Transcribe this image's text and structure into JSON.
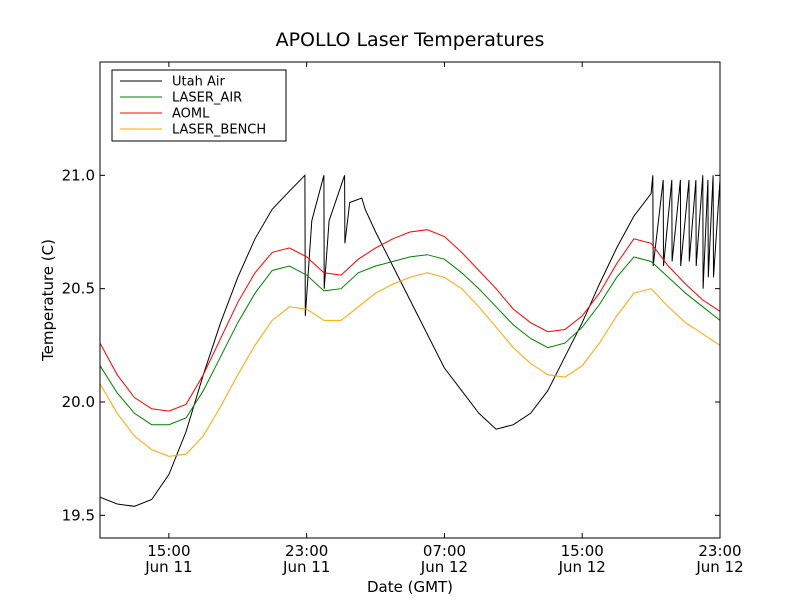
{
  "chart_data": {
    "type": "line",
    "title": "APOLLO Laser Temperatures",
    "xlabel": "Date (GMT)",
    "ylabel": "Temperature (C)",
    "xlim": [
      11,
      47
    ],
    "ylim": [
      19.4,
      21.5
    ],
    "grid": false,
    "legend_position": "top-left",
    "x_ticks": [
      {
        "x": 15,
        "time": "15:00",
        "date": "Jun 11"
      },
      {
        "x": 23,
        "time": "23:00",
        "date": "Jun 11"
      },
      {
        "x": 31,
        "time": "07:00",
        "date": "Jun 12"
      },
      {
        "x": 39,
        "time": "15:00",
        "date": "Jun 12"
      },
      {
        "x": 47,
        "time": "23:00",
        "date": "Jun 12"
      }
    ],
    "y_ticks": [
      {
        "y": 19.5,
        "label": "19.5"
      },
      {
        "y": 20.0,
        "label": "20.0"
      },
      {
        "y": 20.5,
        "label": "20.5"
      },
      {
        "y": 21.0,
        "label": "21.0"
      }
    ],
    "series": [
      {
        "name": "Utah Air",
        "color": "#000000",
        "x": [
          11,
          12,
          13,
          14,
          15,
          16,
          17,
          18,
          19,
          20,
          21,
          22,
          22.9,
          22.92,
          23.3,
          24.0,
          24.02,
          24.3,
          25.2,
          25.22,
          25.5,
          26.2,
          26.4,
          27,
          28,
          29,
          30,
          31,
          32,
          33,
          34,
          35,
          36,
          37,
          38,
          39,
          40,
          41,
          42,
          43,
          43.1,
          43.12,
          43.7,
          43.72,
          44.2,
          44.22,
          44.7,
          44.72,
          45.2,
          45.22,
          45.6,
          45.62,
          46.0,
          46.02,
          46.3,
          46.32,
          46.6,
          46.62,
          47
        ],
        "y": [
          19.58,
          19.55,
          19.54,
          19.57,
          19.68,
          19.87,
          20.12,
          20.35,
          20.55,
          20.72,
          20.85,
          20.93,
          21.0,
          20.38,
          20.8,
          21.0,
          20.5,
          20.8,
          21.0,
          20.7,
          20.88,
          20.9,
          20.85,
          20.75,
          20.6,
          20.45,
          20.3,
          20.15,
          20.05,
          19.95,
          19.88,
          19.9,
          19.95,
          20.05,
          20.2,
          20.35,
          20.52,
          20.68,
          20.82,
          20.92,
          21.0,
          20.6,
          20.98,
          20.6,
          20.98,
          20.62,
          20.98,
          20.6,
          20.98,
          20.62,
          20.98,
          20.6,
          21.0,
          20.5,
          20.98,
          20.55,
          21.0,
          20.55,
          20.98
        ]
      },
      {
        "name": "LASER_AIR",
        "color": "#008000",
        "x": [
          11,
          12,
          13,
          14,
          15,
          16,
          17,
          18,
          19,
          20,
          21,
          22,
          23,
          24,
          25,
          26,
          27,
          28,
          29,
          30,
          31,
          32,
          33,
          34,
          35,
          36,
          37,
          38,
          39,
          40,
          41,
          42,
          43,
          44,
          45,
          46,
          47
        ],
        "y": [
          20.16,
          20.04,
          19.95,
          19.9,
          19.9,
          19.93,
          20.05,
          20.2,
          20.35,
          20.48,
          20.58,
          20.6,
          20.56,
          20.49,
          20.5,
          20.57,
          20.6,
          20.62,
          20.64,
          20.65,
          20.63,
          20.57,
          20.5,
          20.42,
          20.34,
          20.28,
          20.24,
          20.26,
          20.33,
          20.43,
          20.55,
          20.64,
          20.62,
          20.55,
          20.48,
          20.42,
          20.36
        ]
      },
      {
        "name": "AOML",
        "color": "#ff0000",
        "x": [
          11,
          12,
          13,
          14,
          15,
          16,
          17,
          18,
          19,
          20,
          21,
          22,
          23,
          24,
          25,
          26,
          27,
          28,
          29,
          30,
          31,
          32,
          33,
          34,
          35,
          36,
          37,
          38,
          39,
          40,
          41,
          42,
          43,
          44,
          45,
          46,
          47
        ],
        "y": [
          20.26,
          20.12,
          20.02,
          19.97,
          19.96,
          19.99,
          20.12,
          20.28,
          20.44,
          20.57,
          20.66,
          20.68,
          20.64,
          20.57,
          20.56,
          20.63,
          20.68,
          20.72,
          20.75,
          20.76,
          20.73,
          20.66,
          20.58,
          20.5,
          20.41,
          20.35,
          20.31,
          20.32,
          20.38,
          20.48,
          20.61,
          20.72,
          20.7,
          20.6,
          20.52,
          20.45,
          20.4
        ]
      },
      {
        "name": "LASER_BENCH",
        "color": "#ffa500",
        "x": [
          11,
          12,
          13,
          14,
          15,
          16,
          17,
          18,
          19,
          20,
          21,
          22,
          23,
          24,
          25,
          26,
          27,
          28,
          29,
          30,
          31,
          32,
          33,
          34,
          35,
          36,
          37,
          38,
          39,
          40,
          41,
          42,
          43,
          44,
          45,
          46,
          47
        ],
        "y": [
          20.08,
          19.95,
          19.85,
          19.79,
          19.76,
          19.77,
          19.85,
          19.98,
          20.12,
          20.25,
          20.36,
          20.42,
          20.41,
          20.36,
          20.36,
          20.42,
          20.48,
          20.52,
          20.55,
          20.57,
          20.55,
          20.5,
          20.42,
          20.33,
          20.24,
          20.17,
          20.12,
          20.11,
          20.16,
          20.26,
          20.38,
          20.48,
          20.5,
          20.42,
          20.35,
          20.3,
          20.25
        ]
      }
    ]
  }
}
